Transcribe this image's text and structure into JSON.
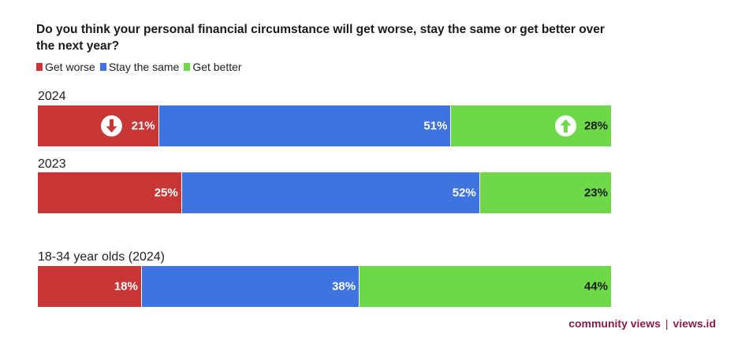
{
  "chart_data": {
    "type": "bar",
    "orientation": "horizontal-stacked-100",
    "title": "Do you think your personal financial circumstance will get worse, stay the same or get better over the next year?",
    "legend": [
      {
        "label": "Get worse",
        "color": "#c83636"
      },
      {
        "label": "Stay the same",
        "color": "#3f74e0"
      },
      {
        "label": "Get better",
        "color": "#6ed948"
      }
    ],
    "categories": [
      "2024",
      "2023",
      "18-34 year olds (2024)"
    ],
    "series": [
      {
        "name": "Get worse",
        "color": "#c83636",
        "values": [
          21,
          25,
          18
        ]
      },
      {
        "name": "Stay the same",
        "color": "#3f74e0",
        "values": [
          51,
          52,
          38
        ]
      },
      {
        "name": "Get better",
        "color": "#6ed948",
        "values": [
          28,
          23,
          44
        ]
      }
    ],
    "rows": [
      {
        "label": "2024",
        "values": [
          21,
          51,
          28
        ],
        "labels": [
          "21%",
          "51%",
          "28%"
        ],
        "icons": true
      },
      {
        "label": "2023",
        "values": [
          25,
          52,
          23
        ],
        "labels": [
          "25%",
          "52%",
          "23%"
        ],
        "icons": false
      },
      {
        "label": "18-34 year olds (2024)",
        "values": [
          18,
          38,
          44
        ],
        "labels": [
          "18%",
          "38%",
          "44%"
        ],
        "icons": false
      }
    ],
    "icons": {
      "worse": "arrow-down-icon",
      "better": "arrow-up-icon"
    },
    "legend_position": "top-left"
  },
  "credit": {
    "left": "community views",
    "separator": "|",
    "right": "views.id"
  }
}
